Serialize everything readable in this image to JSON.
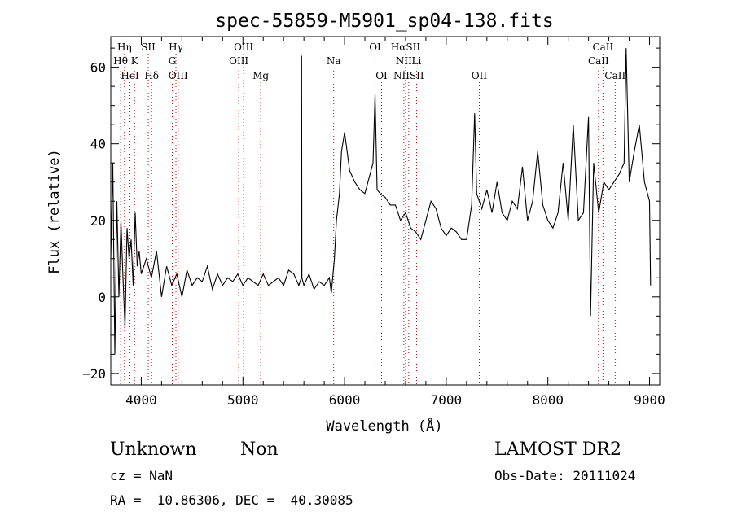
{
  "chart_data": {
    "type": "line",
    "title": "spec-55859-M5901_sp04-138.fits",
    "xlabel": "Wavelength (Å)",
    "ylabel": "Flux (relative)",
    "xlim": [
      3700,
      9100
    ],
    "ylim": [
      -23,
      68
    ],
    "xticks": [
      4000,
      5000,
      6000,
      7000,
      8000,
      9000
    ],
    "yticks": [
      -20,
      0,
      20,
      40,
      60
    ],
    "grid": false,
    "line_color": "#000000",
    "marker_color": "#cc0000",
    "series": [
      {
        "x": [
          3700,
          3720,
          3740,
          3760,
          3780,
          3800,
          3820,
          3840,
          3860,
          3880,
          3900,
          3920,
          3940,
          3960,
          3980,
          4000,
          4050,
          4100,
          4150,
          4200,
          4250,
          4300,
          4350,
          4400,
          4450,
          4500,
          4550,
          4600,
          4650,
          4700,
          4750,
          4800,
          4850,
          4900,
          4950,
          5000,
          5050,
          5100,
          5150,
          5200,
          5250,
          5300,
          5350,
          5400,
          5450,
          5500,
          5550,
          5575,
          5577,
          5580,
          5600,
          5650,
          5700,
          5750,
          5800,
          5850,
          5870,
          5900,
          5920,
          5950,
          5970,
          6000,
          6050,
          6100,
          6150,
          6200,
          6250,
          6280,
          6300,
          6320,
          6350,
          6400,
          6450,
          6500,
          6550,
          6600,
          6650,
          6700,
          6750,
          6800,
          6850,
          6900,
          6950,
          7000,
          7050,
          7100,
          7150,
          7200,
          7250,
          7280,
          7300,
          7350,
          7400,
          7450,
          7500,
          7550,
          7600,
          7650,
          7700,
          7750,
          7800,
          7850,
          7900,
          7950,
          8000,
          8050,
          8100,
          8150,
          8200,
          8250,
          8300,
          8350,
          8400,
          8420,
          8450,
          8500,
          8550,
          8600,
          8650,
          8700,
          8750,
          8770,
          8800,
          8850,
          8900,
          8950,
          9000,
          9010
        ],
        "y": [
          10,
          35,
          -15,
          25,
          0,
          20,
          5,
          -8,
          18,
          10,
          15,
          3,
          22,
          8,
          12,
          6,
          10,
          5,
          12,
          0,
          8,
          3,
          6,
          0,
          7,
          3,
          5,
          4,
          8,
          2,
          6,
          3,
          5,
          4,
          6,
          3,
          5,
          4,
          3,
          6,
          3,
          4,
          5,
          3,
          7,
          6,
          3,
          5,
          63,
          5,
          3,
          6,
          2,
          4,
          3,
          5,
          1,
          10,
          20,
          27,
          38,
          43,
          33,
          30,
          28,
          27,
          32,
          35,
          53,
          28,
          27,
          26,
          24,
          24,
          20,
          22,
          18,
          17,
          15,
          20,
          25,
          23,
          18,
          16,
          18,
          17,
          15,
          15,
          24,
          48,
          27,
          23,
          28,
          22,
          30,
          22,
          20,
          25,
          23,
          34,
          20,
          25,
          38,
          24,
          20,
          18,
          22,
          35,
          20,
          45,
          20,
          22,
          47,
          -5,
          35,
          22,
          30,
          28,
          30,
          32,
          35,
          65,
          30,
          38,
          45,
          30,
          25,
          3
        ]
      }
    ],
    "line_markers": [
      {
        "label": "Hη",
        "x": 3835,
        "row": 0
      },
      {
        "label": "Hθ",
        "x": 3797,
        "row": 1
      },
      {
        "label": "HeI",
        "x": 3889,
        "row": 2
      },
      {
        "label": "SII",
        "x": 4069,
        "row": 0
      },
      {
        "label": "K",
        "x": 3934,
        "row": 1
      },
      {
        "label": "Hδ",
        "x": 4102,
        "row": 2
      },
      {
        "label": "Hγ",
        "x": 4341,
        "row": 0
      },
      {
        "label": "G",
        "x": 4305,
        "row": 1
      },
      {
        "label": "OIII",
        "x": 4363,
        "row": 2
      },
      {
        "label": "OIII",
        "x": 5007,
        "row": 0
      },
      {
        "label": "OIII",
        "x": 4959,
        "row": 1
      },
      {
        "label": "Mg",
        "x": 5175,
        "row": 2
      },
      {
        "label": "Na",
        "x": 5893,
        "row": 1
      },
      {
        "label": "OI",
        "x": 6300,
        "row": 0
      },
      {
        "label": "OI",
        "x": 6364,
        "row": 2
      },
      {
        "label": "HαSII",
        "x": 6600,
        "row": 0
      },
      {
        "label": "NII",
        "x": 6583,
        "row": 1
      },
      {
        "label": "Li",
        "x": 6708,
        "row": 1
      },
      {
        "label": "NIISII",
        "x": 6631,
        "row": 2
      },
      {
        "label": "OII",
        "x": 7325,
        "row": 2
      },
      {
        "label": "CaII",
        "x": 8542,
        "row": 0
      },
      {
        "label": "CaII",
        "x": 8498,
        "row": 1
      },
      {
        "label": "CaII",
        "x": 8662,
        "row": 2
      }
    ]
  },
  "info": {
    "line1_left": "Unknown",
    "line1_mid": "Non",
    "survey": "LAMOST DR2",
    "cz": "cz = NaN",
    "obs_date": "Obs-Date: 20111024",
    "coords": "RA =  10.86306, DEC =  40.30085"
  }
}
